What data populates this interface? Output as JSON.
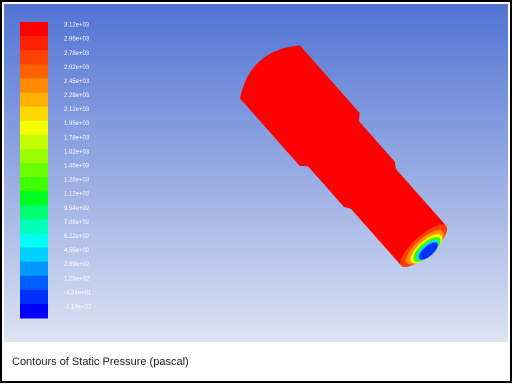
{
  "legend": {
    "entries": [
      {
        "label": "3.12e+03",
        "color": "#ff0000"
      },
      {
        "label": "2.95e+03",
        "color": "#ff2000"
      },
      {
        "label": "2.78e+03",
        "color": "#ff4000"
      },
      {
        "label": "2.62e+03",
        "color": "#ff6000"
      },
      {
        "label": "2.45e+03",
        "color": "#ff8a00"
      },
      {
        "label": "2.28e+03",
        "color": "#ffb000"
      },
      {
        "label": "2.12e+03",
        "color": "#ffd800"
      },
      {
        "label": "1.95e+03",
        "color": "#f4ff00"
      },
      {
        "label": "1.78e+03",
        "color": "#c8ff00"
      },
      {
        "label": "1.62e+03",
        "color": "#9cff00"
      },
      {
        "label": "1.45e+03",
        "color": "#6cff00"
      },
      {
        "label": "1.28e+03",
        "color": "#3cff00"
      },
      {
        "label": "1.12e+03",
        "color": "#00ff20"
      },
      {
        "label": "9.54e+02",
        "color": "#00ff70"
      },
      {
        "label": "7.88e+02",
        "color": "#00ffb8"
      },
      {
        "label": "6.22e+02",
        "color": "#00fff0"
      },
      {
        "label": "4.55e+02",
        "color": "#00d0ff"
      },
      {
        "label": "2.89e+02",
        "color": "#0098ff"
      },
      {
        "label": "1.23e+02",
        "color": "#0060ff"
      },
      {
        "label": "-4.34e+01",
        "color": "#0030ff"
      },
      {
        "label": "-2.10e+02",
        "color": "#0000ff"
      }
    ]
  },
  "caption": "Contours of Static Pressure (pascal)"
}
